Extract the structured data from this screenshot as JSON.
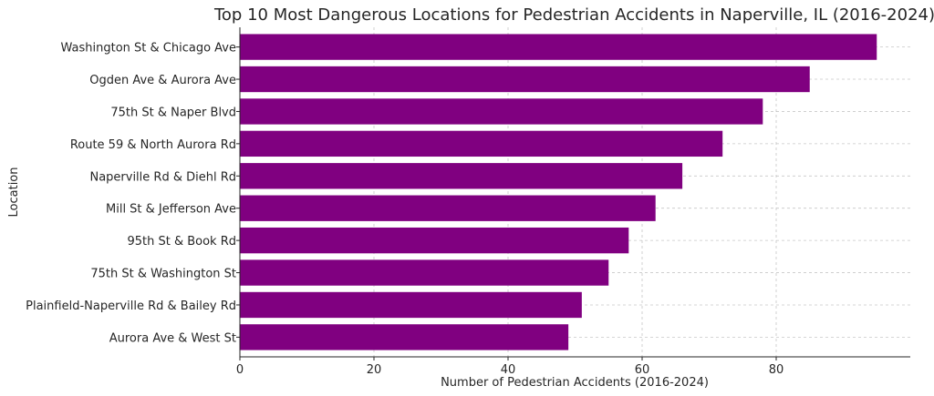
{
  "chart_data": {
    "type": "bar",
    "orientation": "horizontal",
    "title": "Top 10 Most Dangerous Locations for Pedestrian Accidents in Naperville, IL (2016-2024)",
    "xlabel": "Number of Pedestrian Accidents (2016-2024)",
    "ylabel": "Location",
    "categories": [
      "Washington St & Chicago Ave",
      "Ogden Ave & Aurora Ave",
      "75th St & Naper Blvd",
      "Route 59 & North Aurora Rd",
      "Naperville Rd & Diehl Rd",
      "Mill St & Jefferson Ave",
      "95th St & Book Rd",
      "75th St & Washington St",
      "Plainfield-Naperville Rd & Bailey Rd",
      "Aurora Ave & West St"
    ],
    "values": [
      95,
      85,
      78,
      72,
      66,
      62,
      58,
      55,
      51,
      49
    ],
    "xlim": [
      0,
      100
    ],
    "xticks": [
      0,
      20,
      40,
      60,
      80
    ],
    "xtick_labels": [
      "0",
      "20",
      "40",
      "60",
      "80"
    ],
    "grid": true,
    "bar_color": "#800080"
  }
}
